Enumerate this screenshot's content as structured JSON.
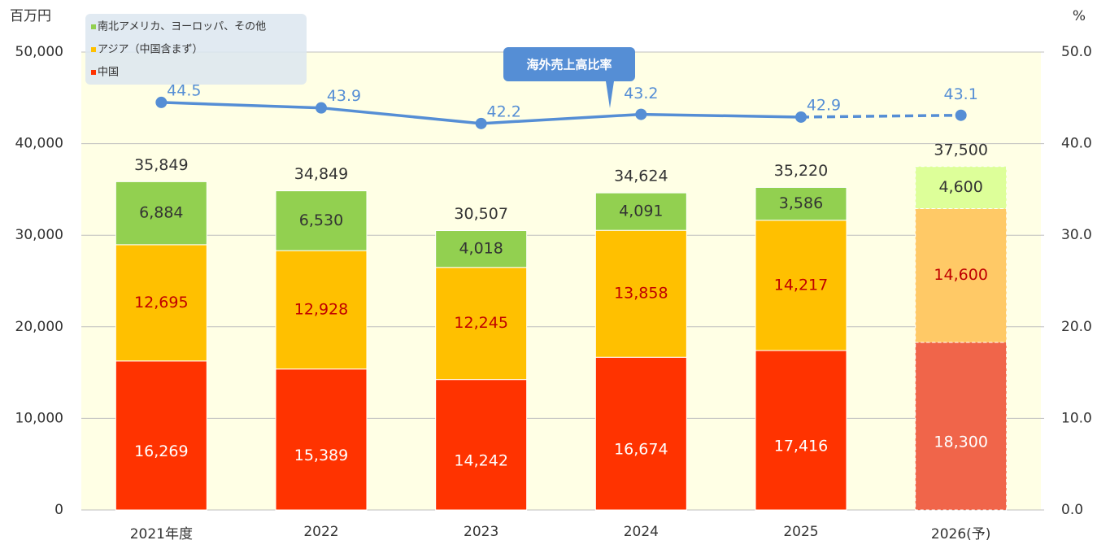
{
  "chart_data": {
    "type": "bar",
    "y_unit_label": "百万円",
    "y2_unit_label": "%",
    "annotation": "海外売上高比率",
    "categories": [
      "2021年度",
      "2022",
      "2023",
      "2024",
      "2025",
      "2026(予)"
    ],
    "forecast_index": 5,
    "series": [
      {
        "name": "中国",
        "color": "#ff3300",
        "forecast_color": "#f0654a",
        "label_color": "#ffffff",
        "values": [
          16269,
          15389,
          14242,
          16674,
          17416,
          18300
        ],
        "value_labels": [
          "16,269",
          "15,389",
          "14,242",
          "16,674",
          "17,416",
          "18,300"
        ]
      },
      {
        "name": "アジア（中国含まず）",
        "color": "#ffc000",
        "forecast_color": "#ffc966",
        "label_color": "#c00000",
        "values": [
          12695,
          12928,
          12245,
          13858,
          14217,
          14600
        ],
        "value_labels": [
          "12,695",
          "12,928",
          "12,245",
          "13,858",
          "14,217",
          "14,600"
        ]
      },
      {
        "name": "南北アメリカ、ヨーロッパ、その他",
        "color": "#92d050",
        "forecast_color": "#ddff99",
        "label_color": "#333333",
        "values": [
          6884,
          6530,
          4018,
          4091,
          3586,
          4600
        ],
        "value_labels": [
          "6,884",
          "6,530",
          "4,018",
          "4,091",
          "3,586",
          "4,600"
        ]
      }
    ],
    "totals": [
      35849,
      34849,
      30507,
      34624,
      35220,
      37500
    ],
    "total_labels": [
      "35,849",
      "34,849",
      "30,507",
      "34,624",
      "35,220",
      "37,500"
    ],
    "line": {
      "axis": "y2",
      "color": "#558ed5",
      "values": [
        44.5,
        43.9,
        42.2,
        43.2,
        42.9,
        43.1
      ]
    },
    "ylim": [
      0,
      50000
    ],
    "yticks": [
      0,
      {
        "value": 10000,
        "label": "10,000"
      },
      {
        "value": 20000,
        "label": "20,000"
      },
      {
        "value": 30000,
        "label": "30,000"
      },
      {
        "value": 40000,
        "label": "40,000"
      },
      {
        "value": 50000,
        "label": "50,000"
      }
    ],
    "y2lim": [
      0,
      50
    ],
    "y2ticks": [
      {
        "value": 0,
        "label": "0.0"
      },
      {
        "value": 10,
        "label": "10.0"
      },
      {
        "value": 20,
        "label": "20.0"
      },
      {
        "value": 30,
        "label": "30.0"
      },
      {
        "value": 40,
        "label": "40.0"
      },
      {
        "value": 50,
        "label": "50.0"
      }
    ],
    "grid": true,
    "plot_background": "#ffffe5",
    "legend_position": "top-left"
  }
}
